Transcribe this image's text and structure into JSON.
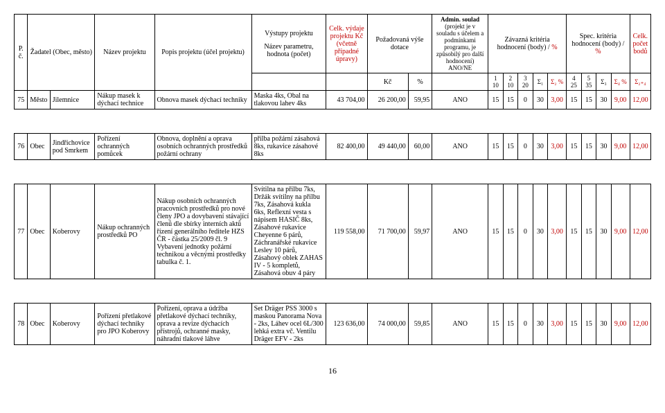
{
  "header": {
    "col_pc": "P. č.",
    "col_zadatel": "Žadatel (Obec, město)",
    "col_nazev": "Název projektu",
    "col_popis": "Popis projektu (účel projektu)",
    "col_vystupy_top": "Výstupy projektu",
    "col_vystupy_sub": "Název parametru, hodnota (počet)",
    "col_vydaje_top": "Celk. výdaje projektu Kč",
    "col_vydaje_sub": "(včetně případné úpravy)",
    "col_dotace_top": "Požadovaná výše dotace",
    "col_dotace_kc": "Kč",
    "col_dotace_pct": "%",
    "col_admin_top": "Admin. soulad",
    "col_admin_desc": "(projekt je v souladu s účelem a podmínkami programu, je způsobilý pro další hodnocení) ANO/NE",
    "col_zavazna_top": "Závazná kritéria hodnocení (body) / ",
    "col_zavazna_pct": "%",
    "col_spec_top": "Spec. kritéria hodnocení (body) / ",
    "col_spec_pct": "%",
    "col_celk_top": "Celk. počet bodů",
    "sub_1": "1 10",
    "sub_2": "2 10",
    "sub_3": "3 20",
    "sub_s1": "Σ₁",
    "sub_s2": "Σ₂ %",
    "sub_4": "4 25",
    "sub_5": "5 35",
    "sub_s3": "Σ₃",
    "sub_s4": "Σ₄ %",
    "sub_s24": "Σ₂₊₄"
  },
  "rows": [
    {
      "pc": "75",
      "zadatel_typ": "Město",
      "zadatel_misto": "Jilemnice",
      "nazev": "Nákup masek k dýchací technice",
      "popis": "Obnova masek dýchací techniky",
      "vystupy": "Maska 4ks, Obal na tlakovou lahev 4ks",
      "vydaje": "43 704,00",
      "dotace_kc": "26 200,00",
      "dotace_pct": "59,95",
      "admin": "ANO",
      "b1": "15",
      "b2": "15",
      "b3": "0",
      "s1": "30",
      "s2": "3,00",
      "b4": "15",
      "b5": "15",
      "s3": "30",
      "s4": "9,00",
      "s24": "12,00"
    },
    {
      "pc": "76",
      "zadatel_typ": "Obec",
      "zadatel_misto": "Jindřichovice pod Smrkem",
      "nazev": "Pořízení ochranných pomůcek",
      "popis": "Obnova, doplnění a oprava osobních ochranných prostředků požární ochrany",
      "vystupy": "přilba požární zásahová 8ks, rukavice zásahové 8ks",
      "vydaje": "82 400,00",
      "dotace_kc": "49 440,00",
      "dotace_pct": "60,00",
      "admin": "ANO",
      "b1": "15",
      "b2": "15",
      "b3": "0",
      "s1": "30",
      "s2": "3,00",
      "b4": "15",
      "b5": "15",
      "s3": "30",
      "s4": "9,00",
      "s24": "12,00"
    },
    {
      "pc": "77",
      "zadatel_typ": "Obec",
      "zadatel_misto": "Koberovy",
      "nazev": "Nákup ochranných prostředků PO",
      "popis": "Nákup osobních ochranných pracovních prostředků pro nové členy JPO a dovybavení stávající členů dle sbírky interních aktů řízení generálního ředitele HZS ČR - částka 25/2009 čl. 9 Vybavení jednotky požární technikou a věcnými prostředky tabulka č. 1.",
      "vystupy": "Svítilna na přilbu 7ks, Držák svítilny na přilbu 7ks, Zásahová kukla 6ks, Reflexní vesta s nápisem HASIČ 8ks, Zásahové rukavice Cheyenne 6 párů, Záchranářské rukavice Lesley 10 párů, Zásahový oblek ZAHAS IV - 5 kompletů, Zásahová obuv 4 páry",
      "vydaje": "119 558,00",
      "dotace_kc": "71 700,00",
      "dotace_pct": "59,97",
      "admin": "ANO",
      "b1": "15",
      "b2": "15",
      "b3": "0",
      "s1": "30",
      "s2": "3,00",
      "b4": "15",
      "b5": "15",
      "s3": "30",
      "s4": "9,00",
      "s24": "12,00"
    },
    {
      "pc": "78",
      "zadatel_typ": "Obec",
      "zadatel_misto": "Koberovy",
      "nazev": "Pořízení přetlakové dýchací techniky pro JPO Koberovy",
      "popis": "Pořízení, oprava a údržba přetlakové dýchací techniky, oprava a revize dýchacích přístrojů, ochranné masky, náhradní tlakové láhve",
      "vystupy": "Set Dräger PSS 3000 s maskou Panorama Nova - 2ks, Láhev ocel 6L/300 lehká extra vč. Ventilu Dräger EFV - 2ks",
      "vydaje": "123 636,00",
      "dotace_kc": "74 000,00",
      "dotace_pct": "59,85",
      "admin": "ANO",
      "b1": "15",
      "b2": "15",
      "b3": "0",
      "s1": "30",
      "s2": "3,00",
      "b4": "15",
      "b5": "15",
      "s3": "30",
      "s4": "9,00",
      "s24": "12,00"
    }
  ],
  "page_number": "16",
  "colors": {
    "red": "#c00000"
  }
}
